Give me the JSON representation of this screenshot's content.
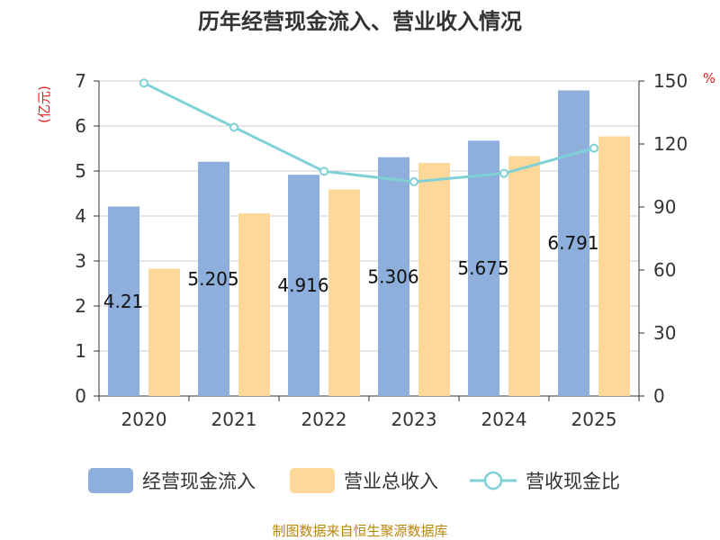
{
  "title": "历年经营现金流入、营业收入情况",
  "source": "制图数据来自恒生聚源数据库",
  "colors": {
    "cash_inflow": "#8eaedb",
    "revenue": "#fdd898",
    "ratio": "#7fd1d6",
    "left_unit": "#e02020",
    "source_text": "#b8860b"
  },
  "chart_data": {
    "type": "bar",
    "title": "历年经营现金流入、营业收入情况",
    "categories": [
      "2020",
      "2021",
      "2022",
      "2023",
      "2024",
      "2025"
    ],
    "left_axis": {
      "unit": "(亿元)",
      "ylim": [
        0,
        7
      ],
      "ticks": [
        "0",
        "1",
        "2",
        "3",
        "4",
        "5",
        "6",
        "7"
      ]
    },
    "right_axis": {
      "unit": "%",
      "ylim": [
        0,
        150
      ],
      "ticks": [
        "0",
        "30",
        "60",
        "90",
        "120",
        "150"
      ]
    },
    "series": [
      {
        "name": "经营现金流入",
        "type": "bar",
        "axis": "left",
        "values": [
          4.21,
          5.205,
          4.916,
          5.306,
          5.675,
          6.791
        ],
        "labels": [
          "4.21",
          "5.205",
          "4.916",
          "5.306",
          "5.675",
          "6.791"
        ]
      },
      {
        "name": "营业总收入",
        "type": "bar",
        "axis": "left",
        "values": [
          2.83,
          4.06,
          4.59,
          5.18,
          5.33,
          5.77
        ]
      },
      {
        "name": "营收现金比",
        "type": "line",
        "axis": "right",
        "values": [
          149,
          128,
          107,
          102,
          106,
          118
        ]
      }
    ],
    "grid": true,
    "legend_position": "bottom"
  }
}
